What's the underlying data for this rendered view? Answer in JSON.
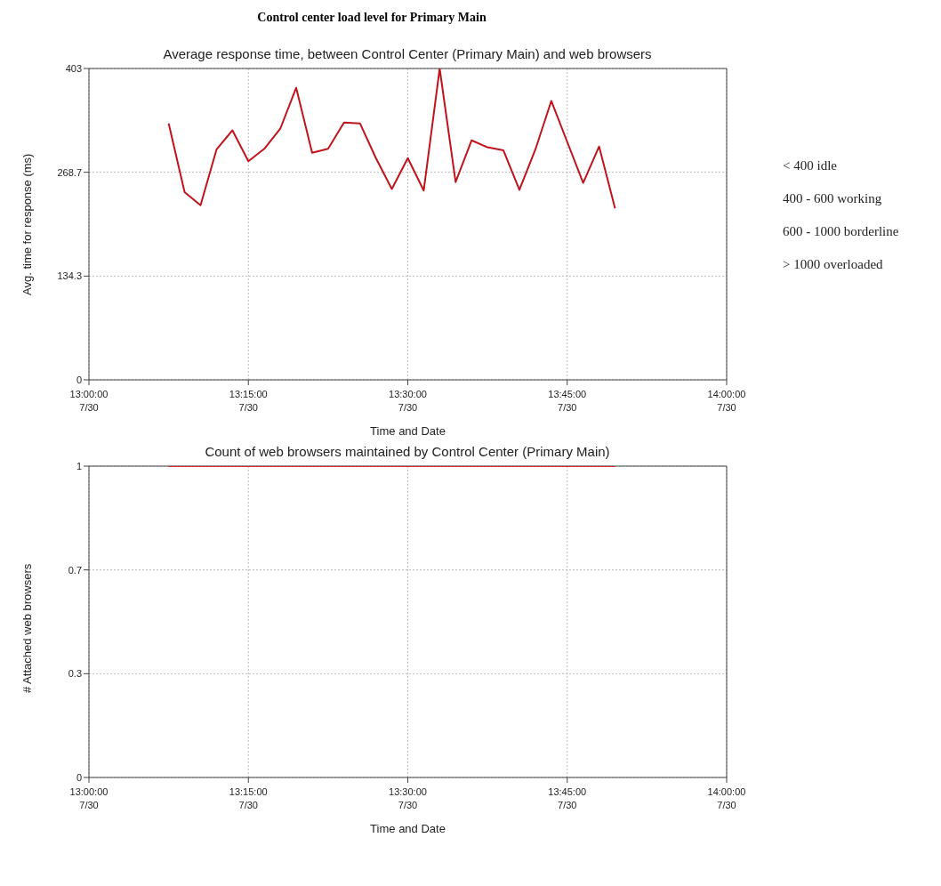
{
  "chart_data": [
    {
      "type": "line",
      "title": "Control center load level for Primary Main",
      "subtitle": "Average response time, between Control Center (Primary Main) and web browsers",
      "xlabel": "Time and Date",
      "ylabel": "Avg. time for response (ms)",
      "categories": [
        "13:00:00\n7/30",
        null,
        null,
        null,
        null,
        null,
        null,
        null,
        null,
        null,
        "13:15:00\n7/30",
        null,
        null,
        null,
        null,
        null,
        null,
        null,
        null,
        null,
        "13:30:00\n7/30",
        null,
        null,
        null,
        null,
        null,
        null,
        null,
        null,
        null,
        "13:45:00\n7/30",
        null,
        null,
        null,
        null,
        null,
        null,
        null,
        null,
        null,
        "14:00:00\n7/30"
      ],
      "series": [
        {
          "color": "#c0141c",
          "values": [
            null,
            null,
            null,
            null,
            null,
            332,
            243,
            226,
            298,
            323,
            283,
            299,
            325,
            378,
            294,
            299,
            333,
            332,
            287,
            247,
            287,
            245,
            403,
            256,
            310,
            301,
            297,
            246,
            298,
            361,
            308,
            255,
            302,
            222,
            null,
            null,
            null,
            null,
            null,
            null,
            null
          ]
        }
      ],
      "ylim": [
        0,
        403
      ],
      "yticks": [
        0,
        134.3,
        268.7,
        403
      ],
      "grid": true,
      "marker": "none",
      "line_style": "solid",
      "annotations": [
        "< 400 idle",
        "400 - 600 working",
        "600 - 1000 borderline",
        "> 1000 overloaded"
      ]
    },
    {
      "type": "line",
      "title": "Count of web browsers maintained by Control Center (Primary Main)",
      "xlabel": "Time and Date",
      "ylabel": "# Attached web browsers",
      "categories": [
        "13:00:00\n7/30",
        null,
        null,
        null,
        null,
        null,
        null,
        null,
        null,
        null,
        "13:15:00\n7/30",
        null,
        null,
        null,
        null,
        null,
        null,
        null,
        null,
        null,
        "13:30:00\n7/30",
        null,
        null,
        null,
        null,
        null,
        null,
        null,
        null,
        null,
        "13:45:00\n7/30",
        null,
        null,
        null,
        null,
        null,
        null,
        null,
        null,
        null,
        "14:00:00\n7/30"
      ],
      "series": [
        {
          "color": "#e0202a",
          "values": [
            null,
            null,
            null,
            null,
            null,
            1,
            1,
            1,
            1,
            1,
            1,
            1,
            1,
            1,
            1,
            1,
            1,
            1,
            1,
            1,
            1,
            1,
            1,
            1,
            1,
            1,
            1,
            1,
            1,
            1,
            1,
            1,
            1,
            1,
            null,
            null,
            null,
            null,
            null,
            null,
            null
          ]
        }
      ],
      "ylim": [
        0,
        1
      ],
      "yticks": [
        0,
        {
          "value": 0.3333,
          "label": "0.3"
        },
        {
          "value": 0.6667,
          "label": "0.7"
        },
        1
      ],
      "grid": true,
      "marker": "none",
      "line_style": "solid"
    }
  ]
}
